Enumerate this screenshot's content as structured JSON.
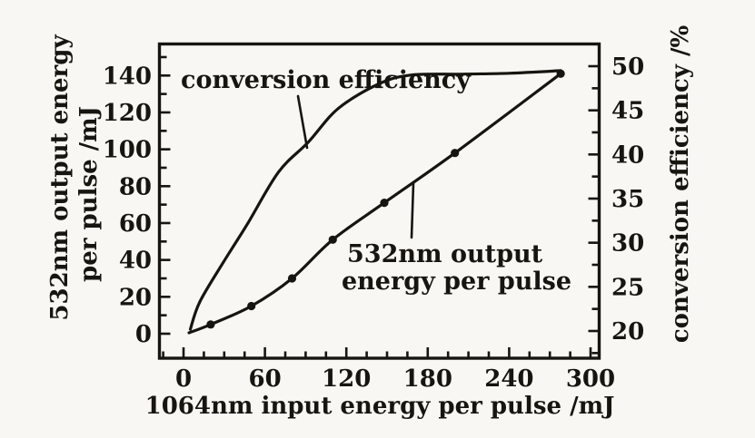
{
  "figure": {
    "paper_color": "#f8f7f3",
    "ink_color": "#17150f"
  },
  "chart_data": {
    "type": "line",
    "title": "",
    "xlabel": "1064nm input energy per pulse /mJ",
    "ylabel_left_lines": [
      "532nm output energy",
      "per pulse /mJ"
    ],
    "ylabel_right": "conversion efficiency /%",
    "x_ticks": [
      0,
      60,
      120,
      180,
      240,
      300
    ],
    "x_minor": {
      "from": -15,
      "to": 300,
      "step": 15
    },
    "xlim": [
      -18,
      307
    ],
    "y_left_ticks": [
      0,
      20,
      40,
      60,
      80,
      100,
      120,
      140
    ],
    "y_left_minor": {
      "from": 0,
      "to": 150,
      "step": 10
    },
    "ylim_left": [
      -13,
      157
    ],
    "y_right_ticks": [
      20,
      25,
      30,
      35,
      40,
      45,
      50
    ],
    "y_right_minor": {
      "from": 17.5,
      "to": 52.5,
      "step": 2.5
    },
    "ylim_right": [
      18.2,
      52.7
    ],
    "grid": false,
    "legend_position": "none",
    "series": [
      {
        "name": "532nm output energy per pulse",
        "axis": "left",
        "marker": "filled-circle",
        "marker_skip_first": 1,
        "x": [
          4,
          20,
          50,
          80,
          110,
          148,
          200,
          278
        ],
        "y": [
          0.5,
          5,
          15,
          30,
          51,
          71,
          98,
          141
        ]
      },
      {
        "name": "conversion efficiency",
        "axis": "right",
        "marker": "none",
        "x": [
          5,
          12,
          29,
          47,
          70,
          92,
          114,
          144,
          168,
          205,
          240,
          278
        ],
        "y": [
          20.2,
          23.3,
          27.7,
          32.1,
          38.0,
          41.4,
          45.2,
          48.0,
          49.0,
          49.1,
          49.2,
          49.5
        ]
      }
    ],
    "annotations": [
      {
        "text": "conversion efficiency"
      },
      {
        "text_lines": [
          "532nm output",
          "energy per pulse"
        ]
      }
    ]
  }
}
